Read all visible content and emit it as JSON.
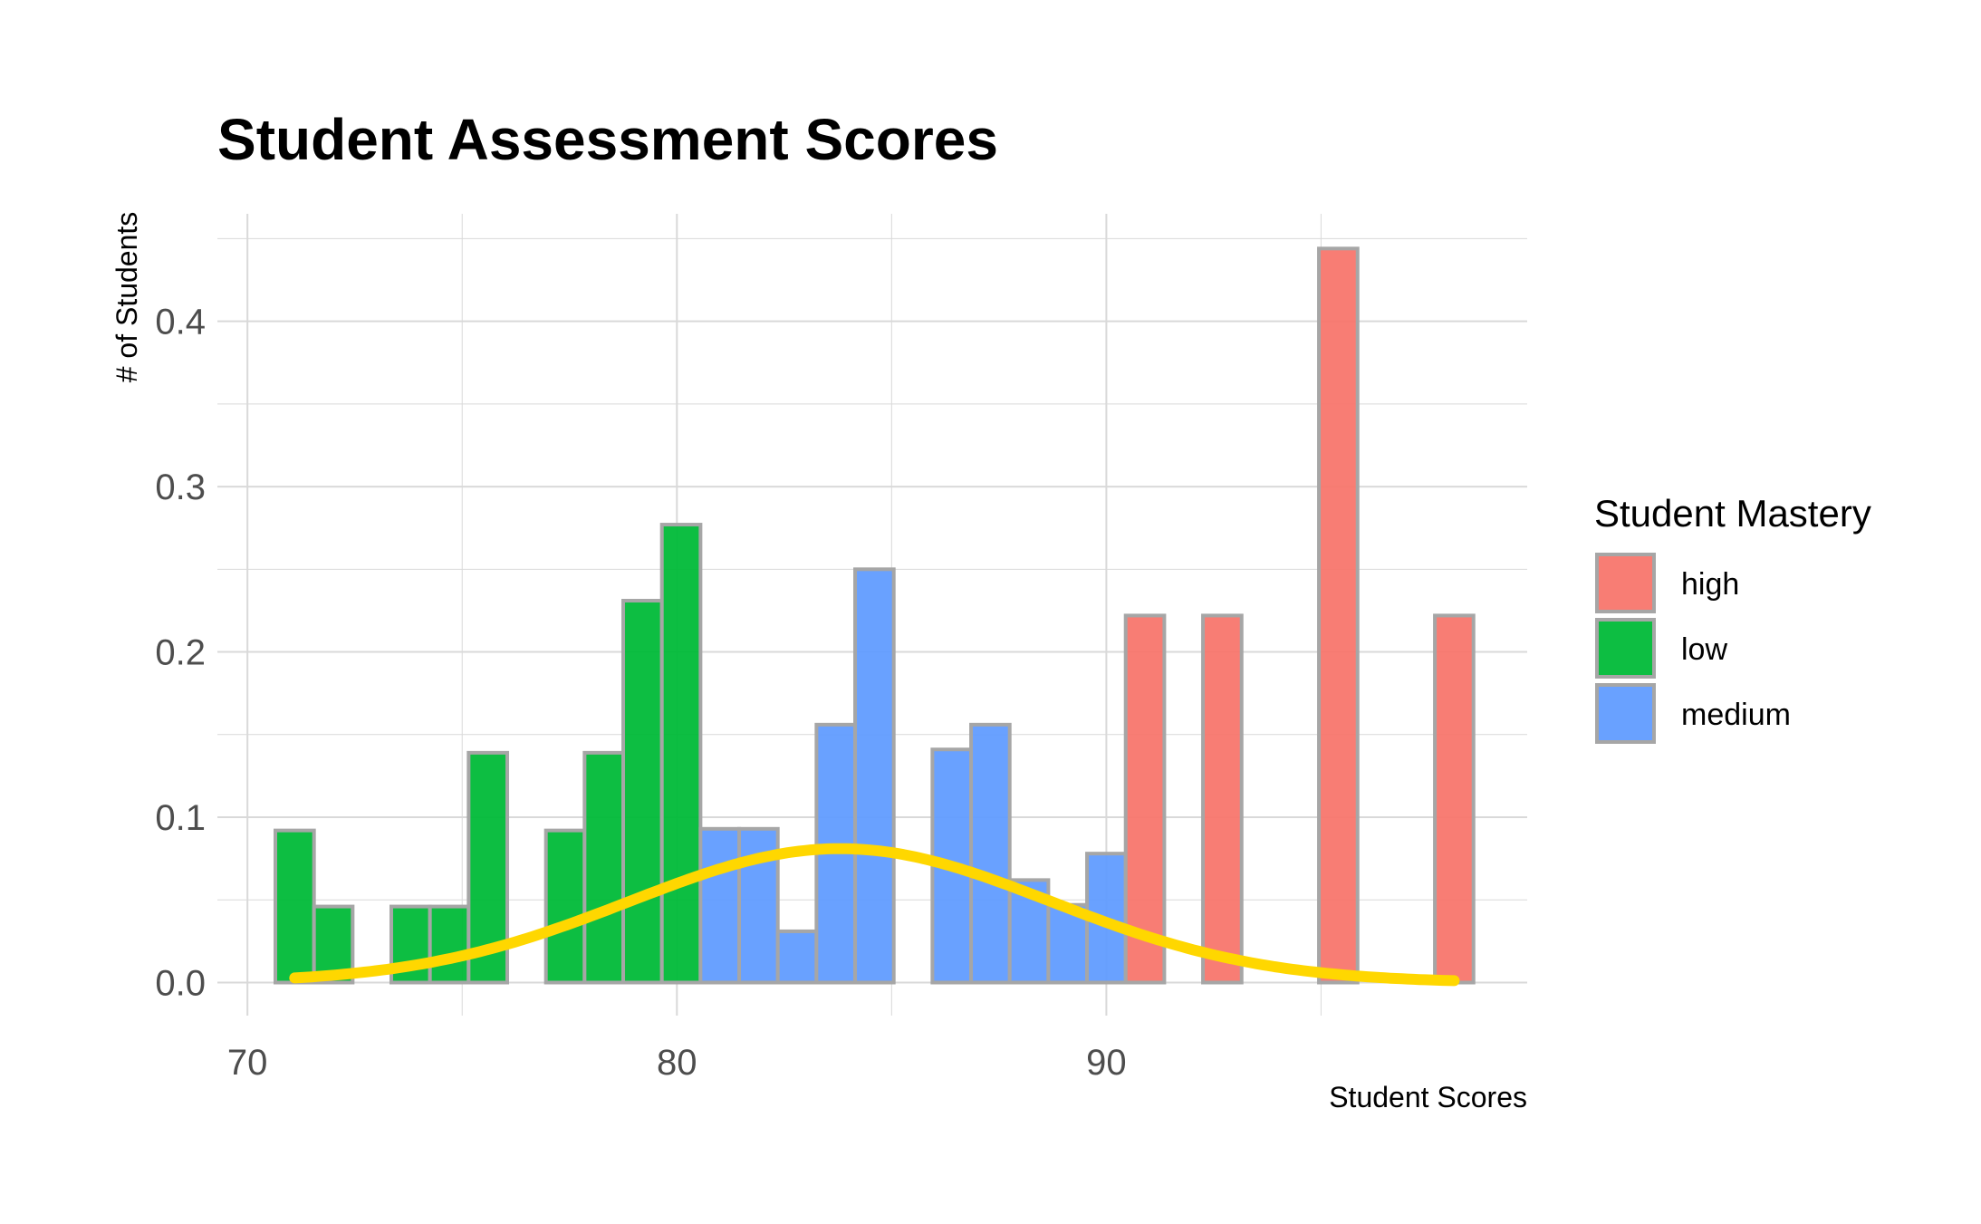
{
  "chart_data": {
    "type": "bar",
    "title": "Student Assessment Scores",
    "xlabel": "Student Scores",
    "ylabel": "# of Students",
    "xlim": [
      69.3,
      99.8
    ],
    "ylim": [
      -0.02,
      0.465
    ],
    "x_ticks": [
      70,
      80,
      90
    ],
    "y_ticks": [
      0.0,
      0.1,
      0.2,
      0.3,
      0.4
    ],
    "x_tick_labels": [
      "70",
      "80",
      "90"
    ],
    "y_tick_labels": [
      "0.0",
      "0.1",
      "0.2",
      "0.3",
      "0.4"
    ],
    "grid": true,
    "bin_width": 0.9,
    "legend": {
      "title": "Student Mastery",
      "position": "right",
      "entries": [
        {
          "label": "high",
          "color": "#F8766D"
        },
        {
          "label": "low",
          "color": "#00BA38"
        },
        {
          "label": "medium",
          "color": "#619CFF"
        }
      ]
    },
    "series": [
      {
        "name": "low",
        "color": "#00BA38",
        "bins": [
          {
            "x": 71.1,
            "value": 0.092
          },
          {
            "x": 72.0,
            "value": 0.046
          },
          {
            "x": 73.8,
            "value": 0.046
          },
          {
            "x": 74.7,
            "value": 0.046
          },
          {
            "x": 75.6,
            "value": 0.139
          },
          {
            "x": 77.4,
            "value": 0.092
          },
          {
            "x": 78.3,
            "value": 0.139
          },
          {
            "x": 79.2,
            "value": 0.231
          },
          {
            "x": 80.1,
            "value": 0.277
          }
        ]
      },
      {
        "name": "medium",
        "color": "#619CFF",
        "bins": [
          {
            "x": 81.0,
            "value": 0.093
          },
          {
            "x": 81.9,
            "value": 0.093
          },
          {
            "x": 82.8,
            "value": 0.031
          },
          {
            "x": 83.7,
            "value": 0.156
          },
          {
            "x": 84.6,
            "value": 0.25
          },
          {
            "x": 86.4,
            "value": 0.141
          },
          {
            "x": 87.3,
            "value": 0.156
          },
          {
            "x": 88.2,
            "value": 0.062
          },
          {
            "x": 89.1,
            "value": 0.047
          },
          {
            "x": 90.0,
            "value": 0.078
          }
        ]
      },
      {
        "name": "high",
        "color": "#F8766D",
        "bins": [
          {
            "x": 90.9,
            "value": 0.222
          },
          {
            "x": 92.7,
            "value": 0.222
          },
          {
            "x": 95.4,
            "value": 0.444
          },
          {
            "x": 98.1,
            "value": 0.222
          }
        ]
      }
    ],
    "density_curve": {
      "name": "normal density",
      "color": "#FFD700",
      "mean": 83.8,
      "sd": 4.9,
      "peak": 0.081,
      "x_range": [
        71.1,
        98.1
      ]
    }
  }
}
